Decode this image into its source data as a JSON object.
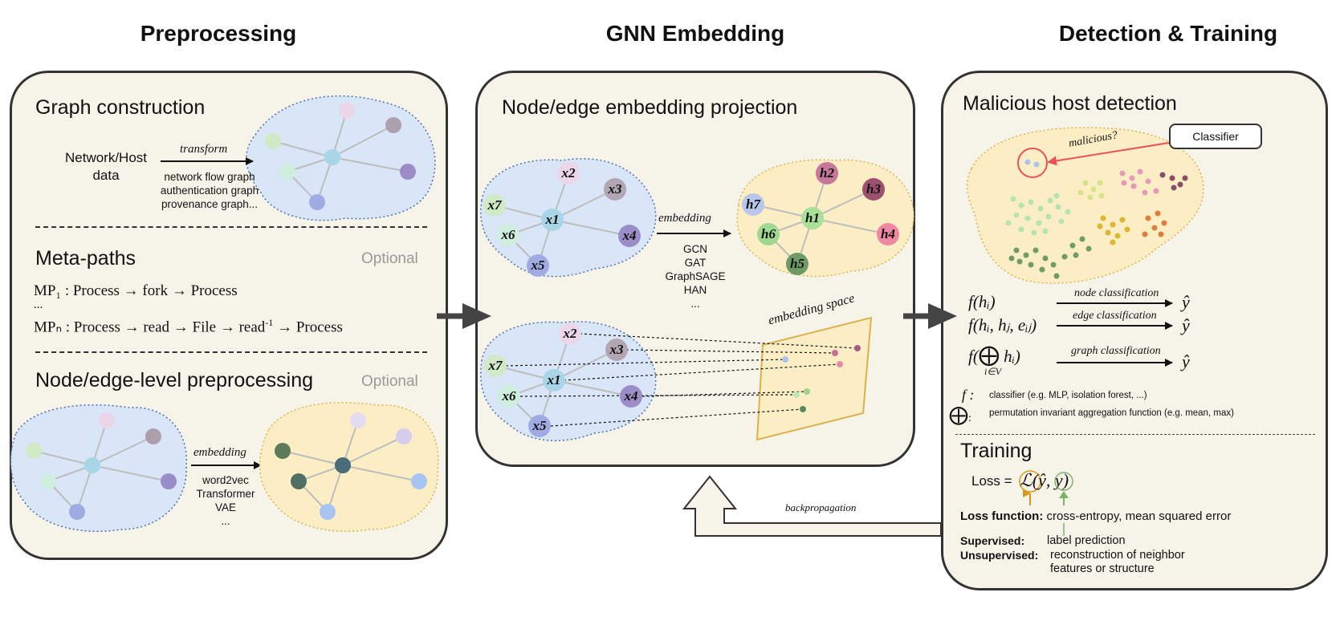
{
  "columns": {
    "preprocessing": "Preprocessing",
    "gnn": "GNN Embedding",
    "detection": "Detection & Training"
  },
  "preprocessing": {
    "graph_construction": {
      "title": "Graph construction",
      "input": "Network/Host\ndata",
      "arrow_label": "transform",
      "examples": "network flow graph\nauthentication graph\nprovenance graph..."
    },
    "meta_paths": {
      "title": "Meta-paths",
      "optional": "Optional",
      "mp1": "MP₁ : Process → fork → Process",
      "ellipsis": "...",
      "mpn_prefix": "MPₙ : Process → read → File → read",
      "mpn_sup": "-1",
      "mpn_suffix": " → Process"
    },
    "node_edge_pre": {
      "title": "Node/edge-level preprocessing",
      "optional": "Optional",
      "arrow_label": "embedding",
      "methods": "word2vec\nTransformer\nVAE\n..."
    }
  },
  "gnn": {
    "title": "Node/edge embedding projection",
    "arrow_label": "embedding",
    "methods": "GCN\nGAT\nGraphSAGE\nHAN\n...",
    "space_label": "embedding space",
    "x_nodes": [
      "x1",
      "x2",
      "x3",
      "x4",
      "x5",
      "x6",
      "x7"
    ],
    "h_nodes": [
      "h1",
      "h2",
      "h3",
      "h4",
      "h5",
      "h6",
      "h7"
    ]
  },
  "detection": {
    "title": "Malicious host detection",
    "classifier": "Classifier",
    "malicious_q": "malicious?",
    "f_node": "f(hᵢ)",
    "f_edge": "f(hᵢ, hⱼ, eᵢⱼ)",
    "f_graph_pre": "f(",
    "f_graph_post": " hᵢ)",
    "f_graph_sub": "i∈V",
    "node_cls": "node classification",
    "edge_cls": "edge classification",
    "graph_cls": "graph classification",
    "yhat": "ŷ",
    "f_sym": "f :",
    "f_desc": "classifier (e.g. MLP, isolation forest, ...)",
    "oplus_desc": "permutation invariant aggregation function (e.g. mean, max)"
  },
  "training": {
    "title": "Training",
    "loss_label": "Loss =",
    "loss_expr": "ℒ(ŷ, y)",
    "loss_function_label": "Loss function:",
    "loss_function_value": "cross-entropy, mean squared error",
    "supervised_label": "Supervised:",
    "supervised_value": "label prediction",
    "unsupervised_label": "Unsupervised:",
    "unsupervised_value": "reconstruction of neighbor\nfeatures or structure",
    "backprop": "backpropagation"
  },
  "colors": {
    "panel_bg": "#f6f3e9",
    "blue_blob": "#d9e6f7",
    "yellow_blob": "#fbeec4",
    "classifier_arrow": "#e8505b",
    "loss_orange": "#d99a1e",
    "loss_green": "#7cb26a"
  }
}
